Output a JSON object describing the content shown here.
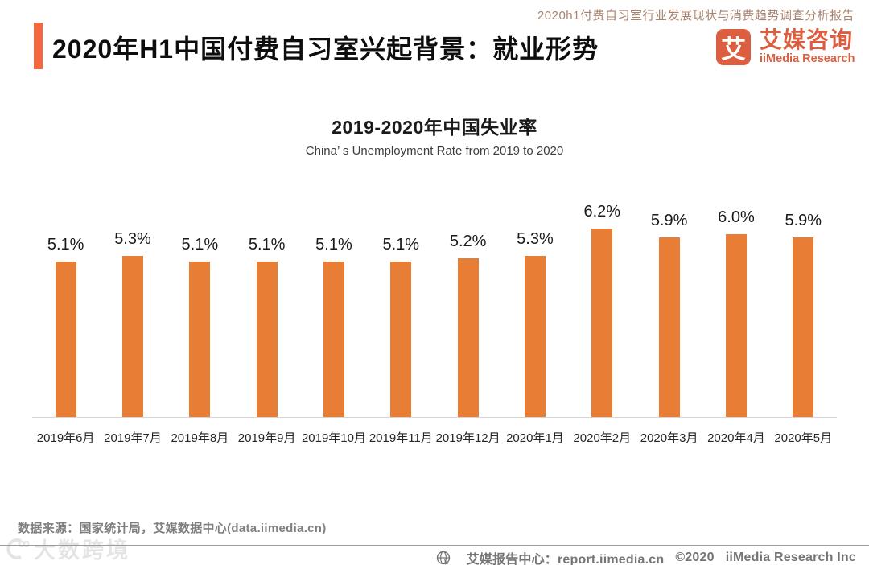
{
  "header": {
    "tagline": "2020h1付费自习室行业发展现状与消费趋势调查分析报告",
    "title": "2020年H1中国付费自习室兴起背景：就业形势",
    "logo": {
      "symbol": "艾",
      "brand_cn": "艾媒咨询",
      "brand_en": "iiMedia Research"
    }
  },
  "chart_data": {
    "type": "bar",
    "title": "2019-2020年中国失业率",
    "subtitle": "China’ s Unemployment Rate from 2019 to 2020",
    "categories": [
      "2019年6月",
      "2019年7月",
      "2019年8月",
      "2019年9月",
      "2019年10月",
      "2019年11月",
      "2019年12月",
      "2020年1月",
      "2020年2月",
      "2020年3月",
      "2020年4月",
      "2020年5月"
    ],
    "values": [
      5.1,
      5.3,
      5.1,
      5.1,
      5.1,
      5.1,
      5.2,
      5.3,
      6.2,
      5.9,
      6.0,
      5.9
    ],
    "unit": "%",
    "xlabel": "",
    "ylabel": "",
    "ylim": [
      0,
      6.6
    ],
    "grid": false,
    "legend": false,
    "bar_color": "#e87e35",
    "label_format": "one-decimal-percent"
  },
  "source_note": "数据来源：国家统计局，艾媒数据中心(data.iimedia.cn)",
  "watermark": "大数跨境",
  "footer": {
    "report_center": "艾媒报告中心：report.iimedia.cn",
    "copyright": "©2020",
    "company": "iiMedia Research  Inc"
  },
  "colors": {
    "accent_bar": "#f3683e",
    "brand": "#dc5e41",
    "bar": "#e87e35",
    "tagline": "#a8826e"
  }
}
